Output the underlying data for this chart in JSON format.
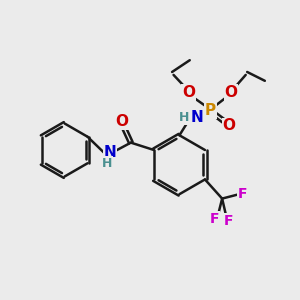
{
  "background_color": "#ebebeb",
  "bond_color": "#1a1a1a",
  "colors": {
    "N": "#0000cc",
    "O": "#cc0000",
    "P": "#cc8800",
    "F": "#cc00cc",
    "H": "#4a9090",
    "C": "#1a1a1a"
  },
  "figsize": [
    3.0,
    3.0
  ],
  "dpi": 100
}
